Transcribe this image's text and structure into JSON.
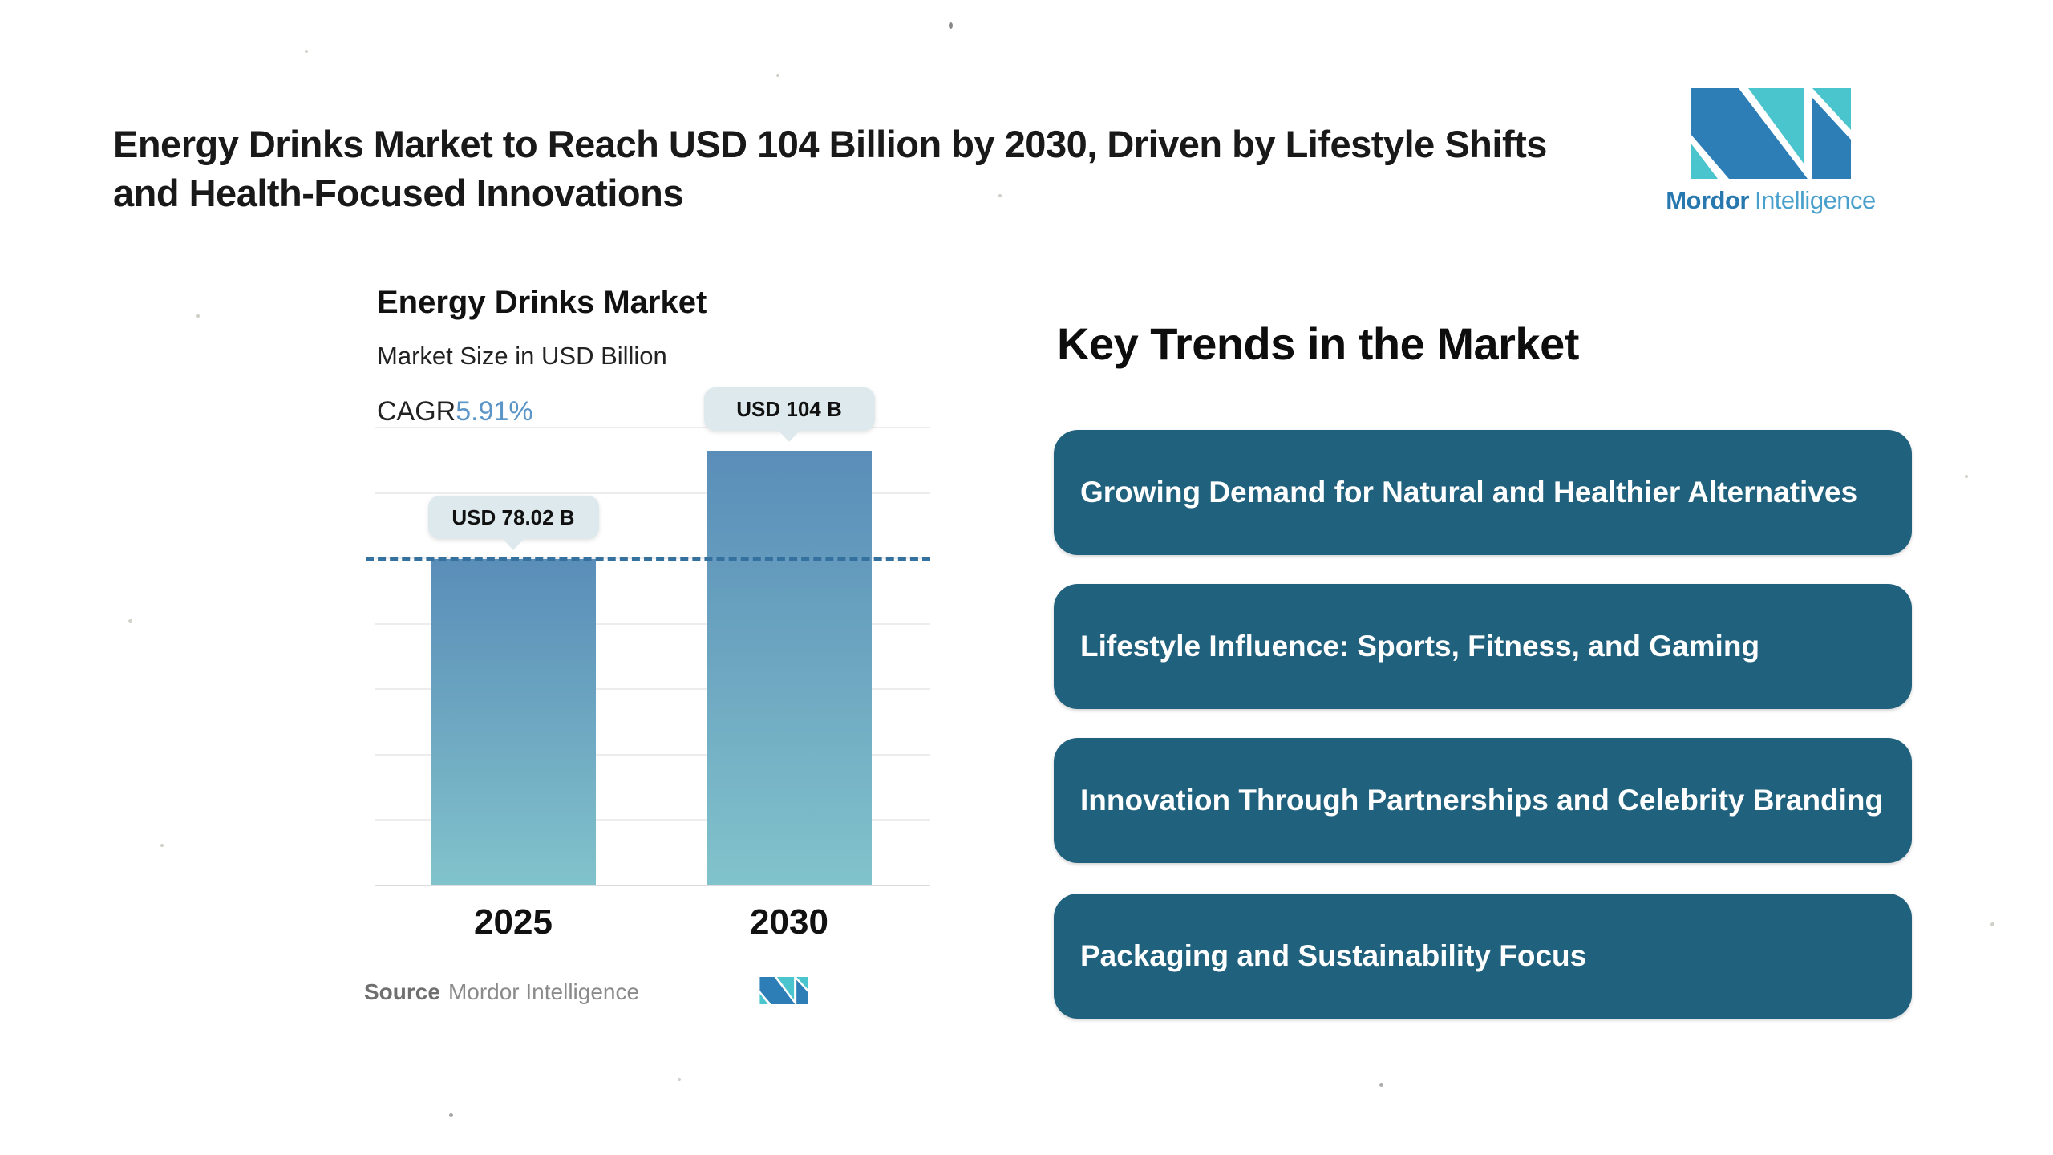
{
  "header": {
    "title_line1": "Energy Drinks Market to Reach USD 104 Billion by 2030, Driven by Lifestyle Shifts",
    "title_line2": "and Health-Focused Innovations"
  },
  "logo": {
    "name_bold": "Mordor",
    "name_regular": "Intelligence",
    "brand_blue": "#2d7db6",
    "brand_teal": "#4ac4cd"
  },
  "chart": {
    "title": "Energy Drinks Market",
    "subtitle": "Market Size in USD Billion",
    "cagr_label": "CAGR",
    "cagr_value": "5.91%",
    "source_label": "Source",
    "source_value": "Mordor Intelligence"
  },
  "chart_data": {
    "type": "bar",
    "title": "Energy Drinks Market",
    "subtitle": "Market Size in USD Billion",
    "cagr_percent": "5.91%",
    "categories": [
      "2025",
      "2030"
    ],
    "values": [
      78.02,
      104
    ],
    "value_labels": [
      "USD 78.02 B",
      "USD 104 B"
    ],
    "unit": "USD Billion",
    "ylim": [
      0,
      115
    ],
    "gridlines": true,
    "reference_line_value": 78.02,
    "bar_gradient_top": "#5a8eb9",
    "bar_gradient_bottom": "#81c3cc",
    "reference_line_color": "#34719e",
    "tooltip_bg": "#dde9ec"
  },
  "trends": {
    "heading": "Key Trends in the Market",
    "box_color": "#20617e",
    "items": [
      {
        "label": "Growing Demand for Natural and Healthier Alternatives"
      },
      {
        "label": "Lifestyle Influence: Sports, Fitness, and Gaming"
      },
      {
        "label": "Innovation Through Partnerships and Celebrity Branding"
      },
      {
        "label": "Packaging and Sustainability Focus"
      }
    ]
  }
}
